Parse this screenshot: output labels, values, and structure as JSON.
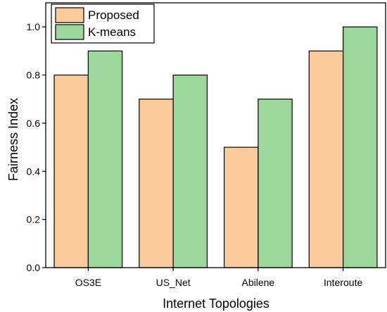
{
  "chart_data": {
    "type": "bar",
    "title": "",
    "xlabel": "Internet Topologies",
    "ylabel": "Fairness Index",
    "categories": [
      "OS3E",
      "US_Net",
      "Abilene",
      "Interoute"
    ],
    "series": [
      {
        "name": "Proposed",
        "values": [
          0.8,
          0.7,
          0.5,
          0.9
        ],
        "color": "#fccb9c"
      },
      {
        "name": "K-means",
        "values": [
          0.9,
          0.8,
          0.7,
          1.0
        ],
        "color": "#9cd89c"
      }
    ],
    "ylim": [
      0,
      1.1
    ],
    "yticks": [
      "0.0",
      "0.2",
      "0.4",
      "0.6",
      "0.8",
      "1.0"
    ],
    "ytick_values": [
      0,
      0.2,
      0.4,
      0.6,
      0.8,
      1.0
    ],
    "grid": false,
    "legend_position": "top-left"
  }
}
